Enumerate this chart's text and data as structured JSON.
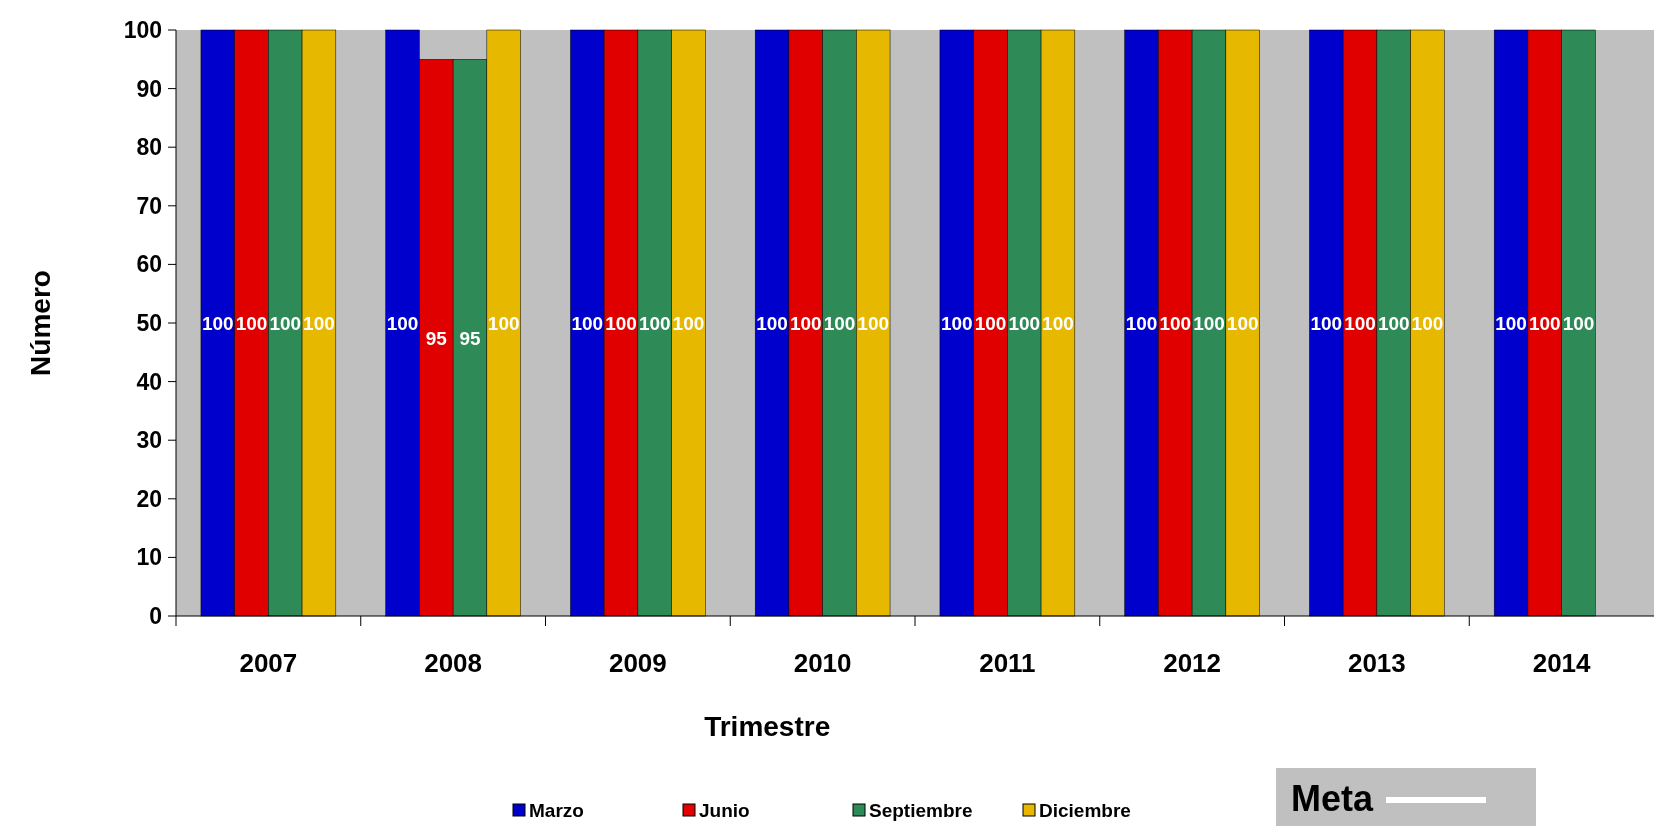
{
  "chart_data": {
    "type": "bar",
    "xlabel": "Trimestre",
    "ylabel": "Número",
    "categories": [
      "2007",
      "2008",
      "2009",
      "2010",
      "2011",
      "2012",
      "2013",
      "2014"
    ],
    "series": [
      {
        "name": "Marzo",
        "color": "#0000cc",
        "values": [
          100,
          100,
          100,
          100,
          100,
          100,
          100,
          100
        ]
      },
      {
        "name": "Junio",
        "color": "#e00000",
        "values": [
          100,
          95,
          100,
          100,
          100,
          100,
          100,
          100
        ]
      },
      {
        "name": "Septiembre",
        "color": "#2e8b57",
        "values": [
          100,
          95,
          100,
          100,
          100,
          100,
          100,
          100
        ]
      },
      {
        "name": "Diciembre",
        "color": "#e6b800",
        "values": [
          100,
          100,
          100,
          100,
          100,
          100,
          100,
          null
        ]
      }
    ],
    "ylim": [
      0,
      100
    ],
    "yticks": [
      0,
      10,
      20,
      30,
      40,
      50,
      60,
      70,
      80,
      90,
      100
    ],
    "annotations": [
      "Meta"
    ],
    "data_labels": true,
    "grid": false,
    "legend": "bottom"
  }
}
